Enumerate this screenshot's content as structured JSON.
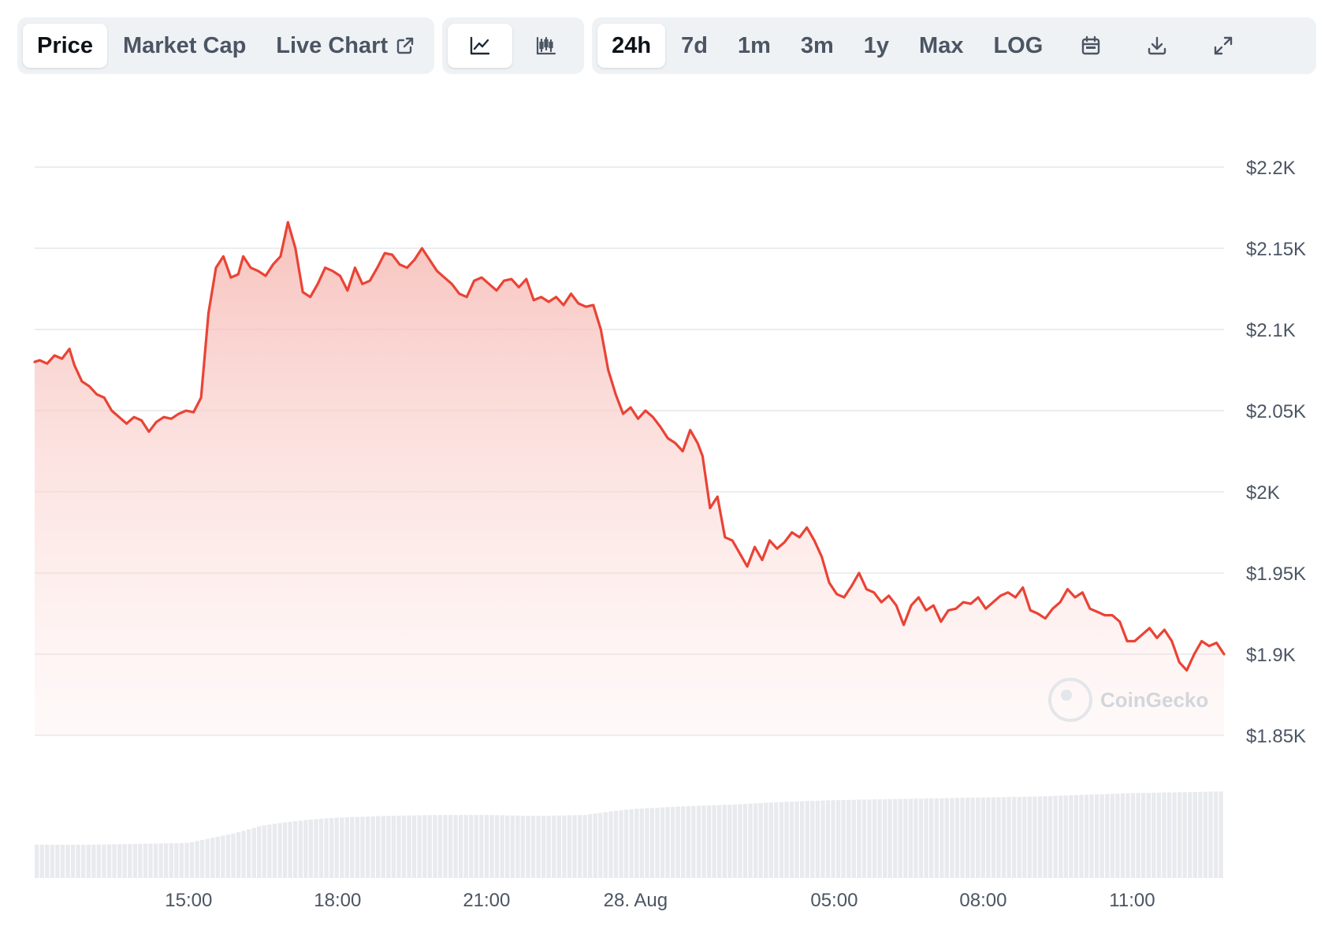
{
  "toolbar": {
    "metric_tabs": [
      {
        "label": "Price",
        "active": true
      },
      {
        "label": "Market Cap",
        "active": false
      },
      {
        "label": "Live Chart",
        "active": false,
        "icon": "external-link-icon"
      }
    ],
    "chart_type_icons": [
      {
        "icon": "line-chart-icon",
        "active": true
      },
      {
        "icon": "candlestick-chart-icon",
        "active": false
      }
    ],
    "ranges": [
      {
        "label": "24h",
        "active": true
      },
      {
        "label": "7d",
        "active": false
      },
      {
        "label": "1m",
        "active": false
      },
      {
        "label": "3m",
        "active": false
      },
      {
        "label": "1y",
        "active": false
      },
      {
        "label": "Max",
        "active": false
      },
      {
        "label": "LOG",
        "active": false
      }
    ],
    "tool_icons": [
      "calendar-icon",
      "download-icon",
      "fullscreen-icon"
    ]
  },
  "watermark": "CoinGecko",
  "colors": {
    "line": "#ea4335",
    "area_top": "#f6b8b2",
    "grid": "#e5e7eb",
    "volume": "#e8eaee",
    "text": "#4b5563"
  },
  "chart_data": {
    "type": "area",
    "x_unit": "hours",
    "xlim": [
      12.9,
      36.85
    ],
    "ylim": [
      1850,
      2200
    ],
    "y_ticks": [
      2200,
      2150,
      2100,
      2050,
      2000,
      1950,
      1900,
      1850
    ],
    "y_tick_labels": [
      "$2.2K",
      "$2.15K",
      "$2.1K",
      "$2.05K",
      "$2K",
      "$1.95K",
      "$1.9K",
      "$1.85K"
    ],
    "x_ticks": [
      {
        "value": 16,
        "label": "15:00"
      },
      {
        "value": 19,
        "label": "18:00"
      },
      {
        "value": 22,
        "label": "21:00"
      },
      {
        "value": 25,
        "label": "28. Aug"
      },
      {
        "value": 29,
        "label": "05:00"
      },
      {
        "value": 32,
        "label": "08:00"
      },
      {
        "value": 35,
        "label": "11:00"
      }
    ],
    "grid": true,
    "series": [
      {
        "points": [
          [
            12.9,
            2080
          ],
          [
            13.0,
            2081
          ],
          [
            13.15,
            2079
          ],
          [
            13.3,
            2084
          ],
          [
            13.45,
            2082
          ],
          [
            13.6,
            2088
          ],
          [
            13.7,
            2078
          ],
          [
            13.85,
            2068
          ],
          [
            14.0,
            2065
          ],
          [
            14.15,
            2060
          ],
          [
            14.3,
            2058
          ],
          [
            14.45,
            2050
          ],
          [
            14.6,
            2046
          ],
          [
            14.75,
            2042
          ],
          [
            14.9,
            2046
          ],
          [
            15.05,
            2044
          ],
          [
            15.2,
            2037
          ],
          [
            15.35,
            2043
          ],
          [
            15.5,
            2046
          ],
          [
            15.65,
            2045
          ],
          [
            15.8,
            2048
          ],
          [
            15.95,
            2050
          ],
          [
            16.1,
            2049
          ],
          [
            16.25,
            2058
          ],
          [
            16.4,
            2110
          ],
          [
            16.55,
            2138
          ],
          [
            16.7,
            2145
          ],
          [
            16.85,
            2132
          ],
          [
            17.0,
            2134
          ],
          [
            17.1,
            2145
          ],
          [
            17.25,
            2138
          ],
          [
            17.4,
            2136
          ],
          [
            17.55,
            2133
          ],
          [
            17.7,
            2140
          ],
          [
            17.85,
            2145
          ],
          [
            18.0,
            2166
          ],
          [
            18.15,
            2150
          ],
          [
            18.3,
            2123
          ],
          [
            18.45,
            2120
          ],
          [
            18.6,
            2128
          ],
          [
            18.75,
            2138
          ],
          [
            18.9,
            2136
          ],
          [
            19.05,
            2133
          ],
          [
            19.2,
            2124
          ],
          [
            19.35,
            2138
          ],
          [
            19.5,
            2128
          ],
          [
            19.65,
            2130
          ],
          [
            19.8,
            2138
          ],
          [
            19.95,
            2147
          ],
          [
            20.1,
            2146
          ],
          [
            20.25,
            2140
          ],
          [
            20.4,
            2138
          ],
          [
            20.55,
            2143
          ],
          [
            20.7,
            2150
          ],
          [
            20.85,
            2143
          ],
          [
            21.0,
            2136
          ],
          [
            21.15,
            2132
          ],
          [
            21.3,
            2128
          ],
          [
            21.45,
            2122
          ],
          [
            21.6,
            2120
          ],
          [
            21.75,
            2130
          ],
          [
            21.9,
            2132
          ],
          [
            22.05,
            2128
          ],
          [
            22.2,
            2124
          ],
          [
            22.35,
            2130
          ],
          [
            22.5,
            2131
          ],
          [
            22.65,
            2126
          ],
          [
            22.8,
            2131
          ],
          [
            22.95,
            2118
          ],
          [
            23.1,
            2120
          ],
          [
            23.25,
            2117
          ],
          [
            23.4,
            2120
          ],
          [
            23.55,
            2115
          ],
          [
            23.7,
            2122
          ],
          [
            23.85,
            2116
          ],
          [
            24.0,
            2114
          ],
          [
            24.15,
            2115
          ],
          [
            24.3,
            2100
          ],
          [
            24.45,
            2075
          ],
          [
            24.6,
            2060
          ],
          [
            24.75,
            2048
          ],
          [
            24.9,
            2052
          ],
          [
            25.05,
            2045
          ],
          [
            25.2,
            2050
          ],
          [
            25.35,
            2046
          ],
          [
            25.5,
            2040
          ],
          [
            25.65,
            2033
          ],
          [
            25.8,
            2030
          ],
          [
            25.95,
            2025
          ],
          [
            26.1,
            2038
          ],
          [
            26.25,
            2030
          ],
          [
            26.35,
            2022
          ],
          [
            26.5,
            1990
          ],
          [
            26.65,
            1997
          ],
          [
            26.8,
            1972
          ],
          [
            26.95,
            1970
          ],
          [
            27.1,
            1962
          ],
          [
            27.25,
            1954
          ],
          [
            27.4,
            1966
          ],
          [
            27.55,
            1958
          ],
          [
            27.7,
            1970
          ],
          [
            27.85,
            1965
          ],
          [
            28.0,
            1969
          ],
          [
            28.15,
            1975
          ],
          [
            28.3,
            1972
          ],
          [
            28.45,
            1978
          ],
          [
            28.6,
            1970
          ],
          [
            28.75,
            1960
          ],
          [
            28.9,
            1944
          ],
          [
            29.05,
            1937
          ],
          [
            29.2,
            1935
          ],
          [
            29.35,
            1942
          ],
          [
            29.5,
            1950
          ],
          [
            29.65,
            1940
          ],
          [
            29.8,
            1938
          ],
          [
            29.95,
            1932
          ],
          [
            30.1,
            1936
          ],
          [
            30.25,
            1930
          ],
          [
            30.4,
            1918
          ],
          [
            30.55,
            1930
          ],
          [
            30.7,
            1935
          ],
          [
            30.85,
            1927
          ],
          [
            31.0,
            1930
          ],
          [
            31.15,
            1920
          ],
          [
            31.3,
            1927
          ],
          [
            31.45,
            1928
          ],
          [
            31.6,
            1932
          ],
          [
            31.75,
            1931
          ],
          [
            31.9,
            1935
          ],
          [
            32.05,
            1928
          ],
          [
            32.2,
            1932
          ],
          [
            32.35,
            1936
          ],
          [
            32.5,
            1938
          ],
          [
            32.65,
            1935
          ],
          [
            32.8,
            1941
          ],
          [
            32.95,
            1927
          ],
          [
            33.1,
            1925
          ],
          [
            33.25,
            1922
          ],
          [
            33.4,
            1928
          ],
          [
            33.55,
            1932
          ],
          [
            33.7,
            1940
          ],
          [
            33.85,
            1935
          ],
          [
            34.0,
            1938
          ],
          [
            34.15,
            1928
          ],
          [
            34.3,
            1926
          ],
          [
            34.45,
            1924
          ],
          [
            34.6,
            1924
          ],
          [
            34.75,
            1920
          ],
          [
            34.9,
            1908
          ],
          [
            35.05,
            1908
          ],
          [
            35.2,
            1912
          ],
          [
            35.35,
            1916
          ],
          [
            35.5,
            1910
          ],
          [
            35.65,
            1915
          ],
          [
            35.8,
            1908
          ],
          [
            35.95,
            1895
          ],
          [
            36.1,
            1890
          ],
          [
            36.25,
            1900
          ],
          [
            36.4,
            1908
          ],
          [
            36.55,
            1905
          ],
          [
            36.7,
            1907
          ],
          [
            36.85,
            1900
          ]
        ]
      }
    ],
    "volume_relative": [
      [
        12.9,
        0.38
      ],
      [
        14.0,
        0.38
      ],
      [
        15.0,
        0.39
      ],
      [
        16.0,
        0.4
      ],
      [
        16.5,
        0.46
      ],
      [
        17.0,
        0.52
      ],
      [
        17.5,
        0.6
      ],
      [
        18.0,
        0.64
      ],
      [
        18.5,
        0.67
      ],
      [
        19.0,
        0.69
      ],
      [
        20.0,
        0.71
      ],
      [
        21.0,
        0.72
      ],
      [
        22.0,
        0.72
      ],
      [
        23.0,
        0.71
      ],
      [
        24.0,
        0.72
      ],
      [
        24.5,
        0.76
      ],
      [
        25.0,
        0.79
      ],
      [
        26.0,
        0.82
      ],
      [
        27.0,
        0.84
      ],
      [
        28.0,
        0.87
      ],
      [
        29.0,
        0.89
      ],
      [
        30.0,
        0.9
      ],
      [
        31.0,
        0.91
      ],
      [
        32.0,
        0.92
      ],
      [
        33.0,
        0.93
      ],
      [
        34.0,
        0.95
      ],
      [
        35.0,
        0.97
      ],
      [
        36.0,
        0.98
      ],
      [
        36.85,
        0.99
      ]
    ]
  }
}
